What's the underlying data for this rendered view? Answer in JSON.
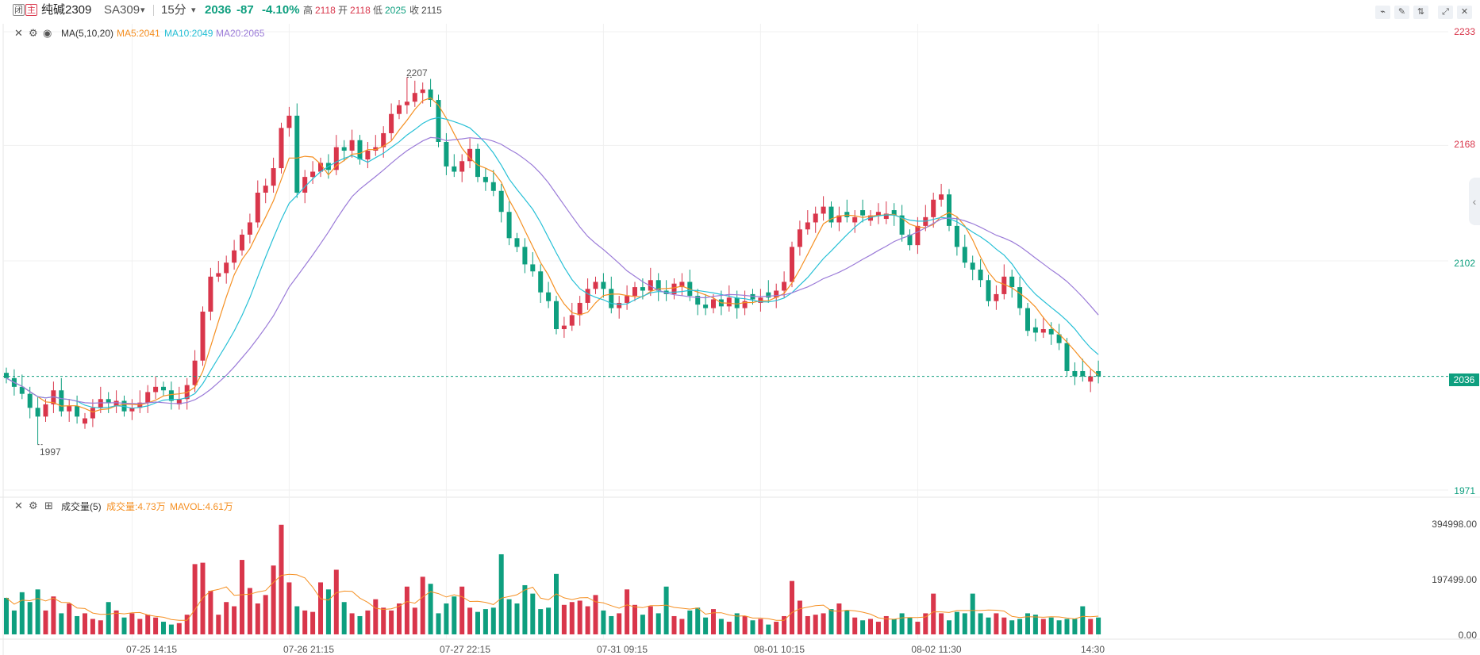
{
  "header": {
    "icon_left": "闭",
    "icon_right": "主",
    "name": "纯碱2309",
    "code": "SA309",
    "code_caret": "▾",
    "interval": "15分",
    "interval_caret": "▾",
    "last": "2036",
    "change": "-87",
    "change_pct": "-4.10%",
    "high_label": "高",
    "high": "2118",
    "open_label": "开",
    "open": "2118",
    "low_label": "低",
    "low": "2025",
    "close_label": "收",
    "close": "2115"
  },
  "toolbar": {
    "tools": [
      "line-chart-icon",
      "pencil-icon",
      "candle-toggle-icon",
      "expand-icon",
      "close-icon"
    ],
    "tool_glyphs": [
      "⌁",
      "✎",
      "⇅",
      "⤢",
      "✕"
    ]
  },
  "price_legend": {
    "close_glyph": "✕",
    "settings_glyph": "⚙",
    "eye_glyph": "◉",
    "ma_title": "MA(5,10,20)",
    "ma5": "MA5:2041",
    "ma10": "MA10:2049",
    "ma20": "MA20:2065",
    "ma5_color": "#f59023",
    "ma10_color": "#27c0d6",
    "ma20_color": "#9b7bd8"
  },
  "volume_legend": {
    "close_glyph": "✕",
    "settings_glyph": "⚙",
    "add_glyph": "⊞",
    "title": "成交量(5)",
    "vol": "成交量:4.73万",
    "mavol": "MAVOL:4.61万"
  },
  "annotations": {
    "max_label": "2207",
    "min_label": "1997"
  },
  "colors": {
    "up": "#d9364b",
    "down": "#0e9f7f"
  },
  "chart_data": [
    {
      "type": "candlestick",
      "title": "",
      "y_ticks": [
        "2233",
        "2168",
        "2102",
        "2036",
        "1971"
      ],
      "last_price": "2036",
      "ylim": [
        1971,
        2233
      ],
      "x_ticks": [
        "07-25 14:15",
        "07-26 21:15",
        "07-27 22:15",
        "07-31 09:15",
        "08-01 10:15",
        "08-02 11:30",
        "14:30"
      ],
      "x_tick_index": [
        16,
        36,
        56,
        76,
        96,
        116,
        139
      ],
      "max_point": {
        "index": 51,
        "value": 2207
      },
      "min_point": {
        "index": 4,
        "value": 1997
      },
      "series": [
        {
          "name": "MA5",
          "values": []
        },
        {
          "name": "MA10",
          "values": []
        },
        {
          "name": "MA20",
          "values": []
        }
      ],
      "closes": [
        2035,
        2030,
        2026,
        2018,
        2013,
        2020,
        2028,
        2016,
        2019,
        2013,
        2012,
        2018,
        2023,
        2021,
        2022,
        2016,
        2018,
        2021,
        2027,
        2030,
        2028,
        2022,
        2023,
        2031,
        2045,
        2073,
        2093,
        2095,
        2101,
        2108,
        2117,
        2124,
        2141,
        2145,
        2155,
        2178,
        2185,
        2141,
        2150,
        2153,
        2158,
        2154,
        2167,
        2165,
        2171,
        2160,
        2165,
        2167,
        2175,
        2186,
        2191,
        2193,
        2198,
        2200,
        2194,
        2170,
        2156,
        2153,
        2159,
        2166,
        2150,
        2147,
        2142,
        2130,
        2115,
        2110,
        2100,
        2096,
        2084,
        2079,
        2063,
        2065,
        2071,
        2078,
        2086,
        2090,
        2086,
        2075,
        2078,
        2082,
        2087,
        2085,
        2091,
        2085,
        2083,
        2089,
        2090,
        2082,
        2077,
        2075,
        2080,
        2076,
        2081,
        2075,
        2079,
        2080,
        2081,
        2081,
        2085,
        2090,
        2110,
        2120,
        2124,
        2129,
        2133,
        2124,
        2128,
        2127,
        2127,
        2128,
        2128,
        2130,
        2129,
        2128,
        2117,
        2111,
        2122,
        2127,
        2137,
        2140,
        2122,
        2110,
        2101,
        2097,
        2091,
        2079,
        2083,
        2093,
        2087,
        2075,
        2062,
        2061,
        2063,
        2060,
        2055,
        2039,
        2036,
        2036,
        2036,
        2036
      ],
      "volume": {
        "ylim": [
          0,
          394998
        ],
        "ticks": [
          "394998.00",
          "197499.00",
          "0.00"
        ],
        "values": [
          130000,
          85000,
          150000,
          115000,
          160000,
          85000,
          135000,
          75000,
          110000,
          65000,
          75000,
          55000,
          50000,
          115000,
          85000,
          60000,
          75000,
          55000,
          70000,
          60000,
          45000,
          35000,
          40000,
          70000,
          250000,
          255000,
          155000,
          70000,
          115000,
          100000,
          265000,
          165000,
          110000,
          140000,
          245000,
          390000,
          185000,
          100000,
          85000,
          80000,
          185000,
          160000,
          230000,
          115000,
          75000,
          65000,
          85000,
          125000,
          95000,
          85000,
          110000,
          170000,
          95000,
          205000,
          180000,
          75000,
          110000,
          135000,
          170000,
          95000,
          80000,
          90000,
          95000,
          285000,
          125000,
          110000,
          175000,
          145000,
          90000,
          95000,
          215000,
          105000,
          115000,
          120000,
          100000,
          140000,
          85000,
          65000,
          75000,
          160000,
          105000,
          70000,
          100000,
          75000,
          170000,
          65000,
          55000,
          85000,
          95000,
          60000,
          90000,
          55000,
          45000,
          75000,
          65000,
          50000,
          55000,
          35000,
          45000,
          65000,
          190000,
          120000,
          65000,
          70000,
          75000,
          90000,
          110000,
          85000,
          60000,
          50000,
          55000,
          45000,
          65000,
          55000,
          75000,
          60000,
          45000,
          75000,
          145000,
          75000,
          50000,
          80000,
          75000,
          145000,
          75000,
          60000,
          75000,
          60000,
          50000,
          55000,
          75000,
          70000,
          55000,
          60000,
          50000,
          55000,
          55000,
          100000,
          55000,
          60000
        ]
      }
    }
  ]
}
